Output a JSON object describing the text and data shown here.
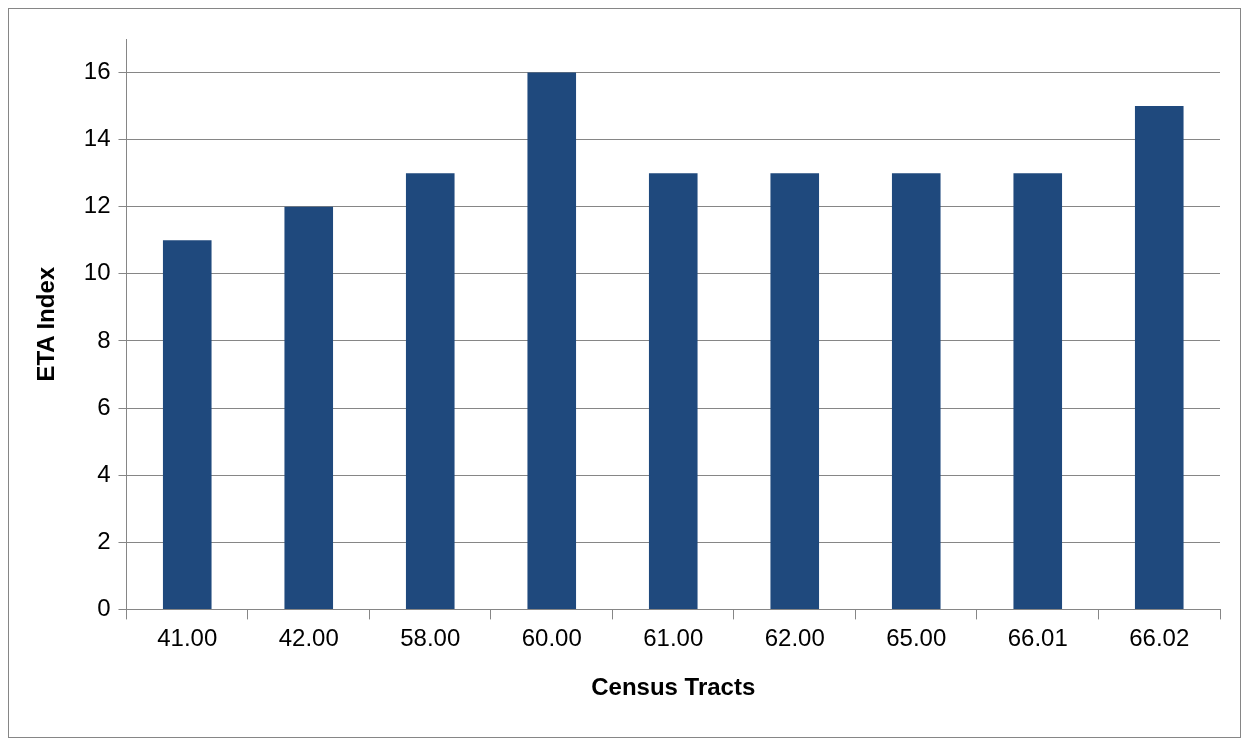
{
  "chart_data": {
    "type": "bar",
    "xlabel": "Census Tracts",
    "ylabel": "ETA Index",
    "categories": [
      "41.00",
      "42.00",
      "58.00",
      "60.00",
      "61.00",
      "62.00",
      "65.00",
      "66.01",
      "66.02"
    ],
    "values": [
      11,
      12,
      13,
      16,
      13,
      13,
      13,
      13,
      15
    ],
    "color": "#1f497d",
    "ylim": [
      0,
      17
    ],
    "yticks": [
      0,
      2,
      4,
      6,
      8,
      10,
      12,
      14,
      16
    ],
    "grid": "y",
    "legend": false
  }
}
